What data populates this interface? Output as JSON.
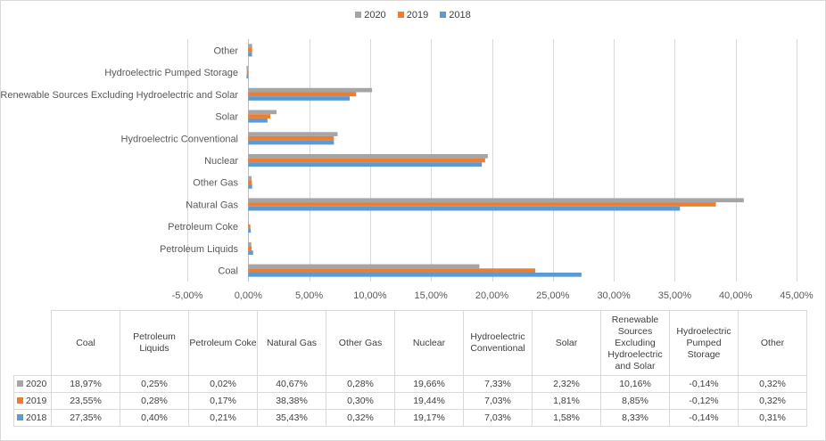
{
  "chart_data": {
    "type": "bar",
    "orientation": "horizontal",
    "categories": [
      "Coal",
      "Petroleum Liquids",
      "Petroleum Coke",
      "Natural Gas",
      "Other Gas",
      "Nuclear",
      "Hydroelectric Conventional",
      "Solar",
      "Renewable Sources Excluding Hydroelectric and Solar",
      "Hydroelectric Pumped Storage",
      "Other"
    ],
    "table_headers": [
      "Coal",
      "Petroleum Liquids",
      "Petroleum Coke",
      "Natural Gas",
      "Other Gas",
      "Nuclear",
      "Hydroelectric Conventional",
      "Solar",
      "Renewable Sources Excluding Hydroelectric and Solar",
      "Hydroelectric Pumped Storage",
      "Other"
    ],
    "series": [
      {
        "name": "2020",
        "color": "#a5a5a5",
        "values": [
          18.97,
          0.25,
          0.02,
          40.67,
          0.28,
          19.66,
          7.33,
          2.32,
          10.16,
          -0.14,
          0.32
        ],
        "labels": [
          "18,97%",
          "0,25%",
          "0,02%",
          "40,67%",
          "0,28%",
          "19,66%",
          "7,33%",
          "2,32%",
          "10,16%",
          "-0,14%",
          "0,32%"
        ]
      },
      {
        "name": "2019",
        "color": "#ed7d31",
        "values": [
          23.55,
          0.28,
          0.17,
          38.38,
          0.3,
          19.44,
          7.03,
          1.81,
          8.85,
          -0.12,
          0.32
        ],
        "labels": [
          "23,55%",
          "0,28%",
          "0,17%",
          "38,38%",
          "0,30%",
          "19,44%",
          "7,03%",
          "1,81%",
          "8,85%",
          "-0,12%",
          "0,32%"
        ]
      },
      {
        "name": "2018",
        "color": "#5b9bd5",
        "values": [
          27.35,
          0.4,
          0.21,
          35.43,
          0.32,
          19.17,
          7.03,
          1.58,
          8.33,
          -0.14,
          0.31
        ],
        "labels": [
          "27,35%",
          "0,40%",
          "0,21%",
          "35,43%",
          "0,32%",
          "19,17%",
          "7,03%",
          "1,58%",
          "8,33%",
          "-0,14%",
          "0,31%"
        ]
      }
    ],
    "xlim": [
      -5,
      45
    ],
    "x_ticks": [
      -5,
      0,
      5,
      10,
      15,
      20,
      25,
      30,
      35,
      40,
      45
    ],
    "x_tick_labels": [
      "-5,00%",
      "0,00%",
      "5,00%",
      "10,00%",
      "15,00%",
      "20,00%",
      "25,00%",
      "30,00%",
      "35,00%",
      "40,00%",
      "45,00%"
    ],
    "grid": "vertical",
    "legend_position": "top",
    "legend_order": [
      "2020",
      "2019",
      "2018"
    ],
    "data_table": true
  }
}
